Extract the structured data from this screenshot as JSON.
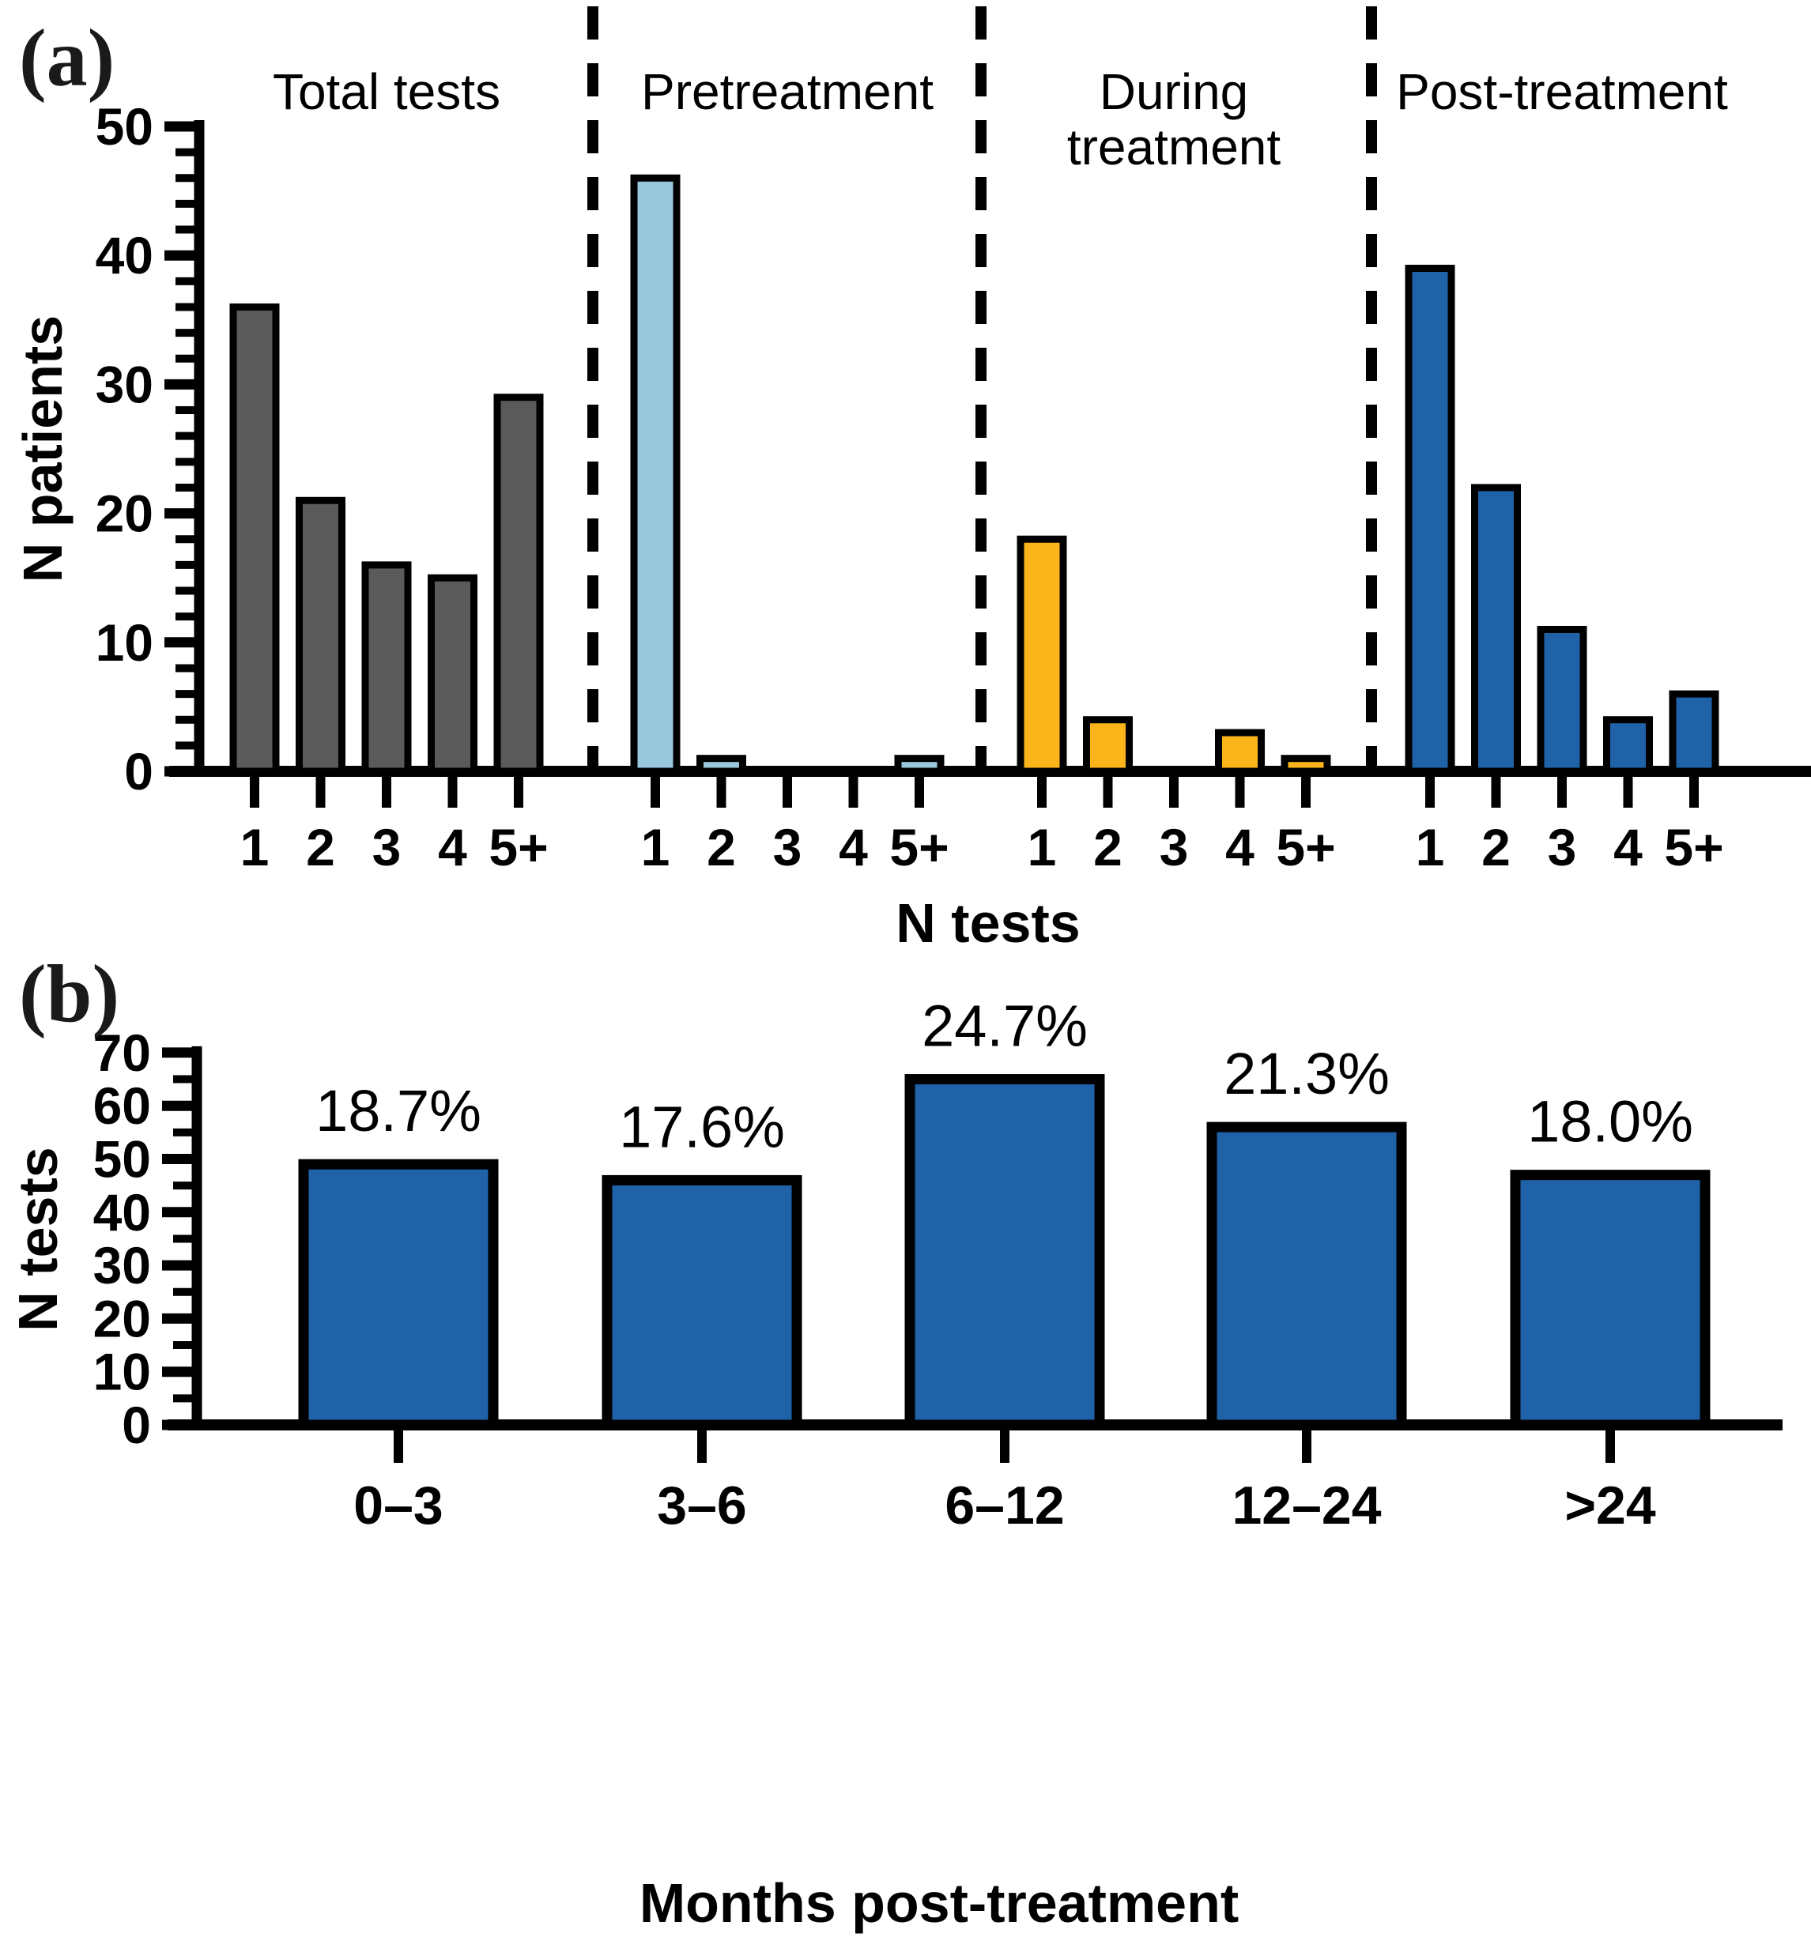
{
  "figure": {
    "background": "#ffffff",
    "axis_color": "#000000"
  },
  "chart_data": [
    {
      "type": "bar",
      "panel_label": "(a)",
      "title": "",
      "ylabel": "N patients",
      "xlabel": "N tests",
      "ylim": [
        0,
        50
      ],
      "yticks": [
        0,
        10,
        20,
        30,
        40,
        50
      ],
      "yminor_step": 2,
      "categories": [
        "1",
        "2",
        "3",
        "4",
        "5+"
      ],
      "grid": false,
      "legend_position": "none",
      "group_separator_style": "dashed",
      "series": [
        {
          "name": "Total tests",
          "label_lines": [
            "Total tests"
          ],
          "color": "#5A5A5A",
          "values": [
            36,
            21,
            16,
            15,
            29
          ]
        },
        {
          "name": "Pretreatment",
          "label_lines": [
            "Pretreatment"
          ],
          "color": "#99C7DB",
          "values": [
            46,
            1,
            0,
            0,
            1
          ]
        },
        {
          "name": "During treatment",
          "label_lines": [
            "During",
            "treatment"
          ],
          "color": "#FBB41A",
          "values": [
            18,
            4,
            0,
            3,
            1
          ]
        },
        {
          "name": "Post-treatment",
          "label_lines": [
            "Post-treatment"
          ],
          "color": "#2062A8",
          "values": [
            39,
            22,
            11,
            4,
            6
          ]
        }
      ]
    },
    {
      "type": "bar",
      "panel_label": "(b)",
      "title": "",
      "ylabel": "N tests",
      "xlabel": "Months post-treatment",
      "ylim": [
        0,
        70
      ],
      "yticks": [
        0,
        10,
        20,
        30,
        40,
        50,
        60,
        70
      ],
      "yminor_step": 5,
      "categories": [
        "0–3",
        "3–6",
        "6–12",
        "12–24",
        ">24"
      ],
      "values": [
        49,
        46,
        65,
        56,
        47
      ],
      "bar_labels": [
        "18.7%",
        "17.6%",
        "24.7%",
        "21.3%",
        "18.0%"
      ],
      "bar_color": "#2062A8",
      "grid": false,
      "legend_position": "none"
    }
  ]
}
